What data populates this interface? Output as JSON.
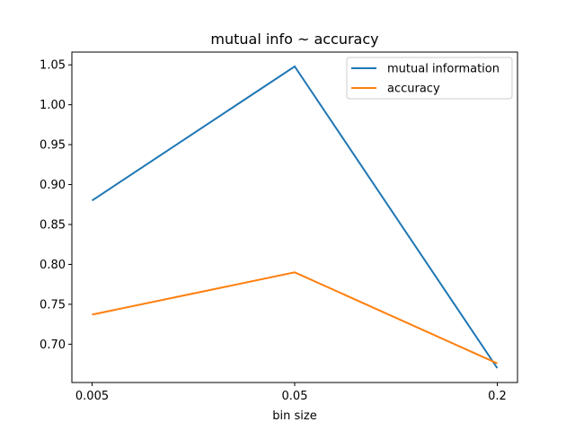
{
  "chart_data": {
    "type": "line",
    "title": "mutual info ~ accuracy",
    "xlabel": "bin size",
    "ylabel": "",
    "categories": [
      "0.005",
      "0.05",
      "0.2"
    ],
    "ylim": [
      0.652,
      1.066
    ],
    "yticks": [
      0.7,
      0.75,
      0.8,
      0.85,
      0.9,
      0.95,
      1.0,
      1.05
    ],
    "ytick_labels": [
      "0.70",
      "0.75",
      "0.80",
      "0.85",
      "0.90",
      "0.95",
      "1.00",
      "1.05"
    ],
    "grid": false,
    "legend_position": "top-right",
    "series": [
      {
        "name": "mutual information",
        "color": "#1f77b4",
        "values": [
          0.88,
          1.048,
          0.67
        ]
      },
      {
        "name": "accuracy",
        "color": "#ff7f0e",
        "values": [
          0.737,
          0.79,
          0.676
        ]
      }
    ]
  }
}
